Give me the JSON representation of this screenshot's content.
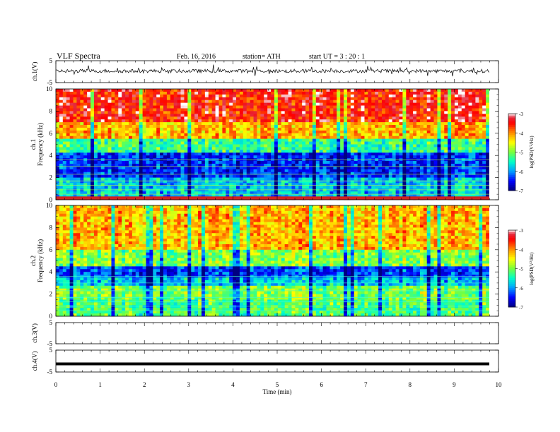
{
  "header": {
    "title": "VLF  Spectra",
    "date": "Feb. 16, 2016",
    "station": "station= ATH",
    "start_ut": "start  UT  =   3  : 20 : 1"
  },
  "chart_data": {
    "type": "heatmap",
    "title": "VLF  Spectra",
    "xlabel": "Time  (min)",
    "xlim": [
      0,
      10
    ],
    "x_ticks": [
      "0",
      "1",
      "2",
      "3",
      "4",
      "5",
      "6",
      "7",
      "8",
      "9",
      "10"
    ],
    "grid": false,
    "panels": [
      {
        "name": "ch1-waveform",
        "type": "line",
        "ylabel": "ch.1(V)",
        "ylim": [
          -5,
          5
        ],
        "y_ticks": [
          "5",
          "-5"
        ],
        "description_level": 0.3
      },
      {
        "name": "ch1-spectrogram",
        "type": "heatmap",
        "ylabel": "ch.1\nFrequency  (kHz)",
        "ylabel_top": "ch.1",
        "ylabel_bottom": "Frequency  (kHz)",
        "ylim": [
          0,
          10
        ],
        "y_ticks": [
          "0",
          "2",
          "4",
          "6",
          "8",
          "10"
        ],
        "colorbar": {
          "label": "log(PSD(V²/Hz)",
          "range": [
            -7,
            -3
          ],
          "ticks": [
            "-3",
            "-4",
            "-5",
            "-6",
            "-7"
          ]
        },
        "bands_kHz": [
          {
            "from": 0.0,
            "to": 0.3,
            "level": -3.0
          },
          {
            "from": 0.3,
            "to": 2.0,
            "level": -5.8
          },
          {
            "from": 2.0,
            "to": 4.3,
            "level": -6.4
          },
          {
            "from": 4.3,
            "to": 5.5,
            "level": -5.3
          },
          {
            "from": 5.5,
            "to": 7.0,
            "level": -4.2
          },
          {
            "from": 7.0,
            "to": 10.0,
            "level": -3.5
          }
        ]
      },
      {
        "name": "ch2-spectrogram",
        "type": "heatmap",
        "ylabel": "ch.2\nFrequency  (kHz)",
        "ylabel_top": "ch.2",
        "ylabel_bottom": "Frequency  (kHz)",
        "ylim": [
          0,
          10
        ],
        "y_ticks": [
          "0",
          "2",
          "4",
          "6",
          "8",
          "10"
        ],
        "colorbar": {
          "label": "log(PSD(V²/Hz)",
          "range": [
            -7,
            -3
          ],
          "ticks": [
            "-3",
            "-4",
            "-5",
            "-6",
            "-7"
          ]
        },
        "bands_kHz": [
          {
            "from": 0.0,
            "to": 1.5,
            "level": -5.2
          },
          {
            "from": 1.5,
            "to": 2.8,
            "level": -5.0
          },
          {
            "from": 2.8,
            "to": 3.5,
            "level": -5.8
          },
          {
            "from": 3.5,
            "to": 4.6,
            "level": -6.3
          },
          {
            "from": 4.6,
            "to": 6.0,
            "level": -5.0
          },
          {
            "from": 6.0,
            "to": 10.0,
            "level": -4.2
          }
        ]
      },
      {
        "name": "ch3-waveform",
        "type": "line",
        "ylabel": "ch.3(V)",
        "ylim": [
          -5,
          5
        ],
        "y_ticks": [
          "5",
          "-5"
        ],
        "values": "flat (no signal)"
      },
      {
        "name": "ch4-waveform",
        "type": "line",
        "ylabel": "ch.4(V)",
        "ylim": [
          -5,
          5
        ],
        "y_ticks": [
          "5",
          "-5"
        ],
        "constant_level": 0.0
      }
    ],
    "colors": [
      "#000080",
      "#0000ff",
      "#00a0ff",
      "#00ffc0",
      "#80ff40",
      "#ffff00",
      "#ff8000",
      "#ff0000",
      "#ffffff"
    ]
  }
}
